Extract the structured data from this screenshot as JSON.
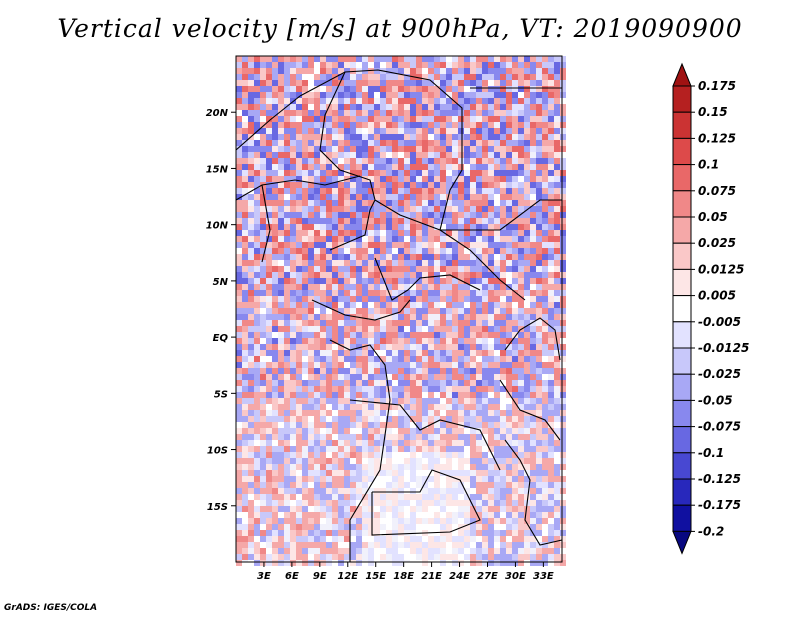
{
  "title": "Vertical velocity [m/s] at 900hPa, VT: 2019090900",
  "credit": "GrADS: IGES/COLA",
  "chart_data": {
    "type": "heatmap",
    "variable": "Vertical velocity",
    "units": "m/s",
    "level": "900hPa",
    "valid_time": "2019090900",
    "x_ticks": [
      "3E",
      "6E",
      "9E",
      "12E",
      "15E",
      "18E",
      "21E",
      "24E",
      "27E",
      "30E",
      "33E"
    ],
    "x_tick_values": [
      3,
      6,
      9,
      12,
      15,
      18,
      21,
      24,
      27,
      30,
      33
    ],
    "y_ticks": [
      "20N",
      "15N",
      "10N",
      "5N",
      "EQ",
      "5S",
      "10S",
      "15S"
    ],
    "y_tick_values": [
      20,
      15,
      10,
      5,
      0,
      -5,
      -10,
      -15
    ],
    "lon_range": [
      0,
      35
    ],
    "lat_range": [
      -20,
      25
    ],
    "colorbar": {
      "labels": [
        "0.175",
        "0.15",
        "0.125",
        "0.1",
        "0.075",
        "0.05",
        "0.025",
        "0.0125",
        "0.005",
        "-0.005",
        "-0.0125",
        "-0.025",
        "-0.05",
        "-0.075",
        "-0.1",
        "-0.125",
        "-0.175",
        "-0.2"
      ],
      "colors": [
        "#a01212",
        "#b52020",
        "#cb3333",
        "#dd4a4a",
        "#e96868",
        "#f08888",
        "#f5a8a8",
        "#fac8c8",
        "#fde6e6",
        "#ffffff",
        "#e2e2ff",
        "#c8c8fa",
        "#a8a8f5",
        "#8888ee",
        "#6868e2",
        "#4848d2",
        "#2828bc",
        "#1010a0",
        "#080880"
      ]
    }
  }
}
